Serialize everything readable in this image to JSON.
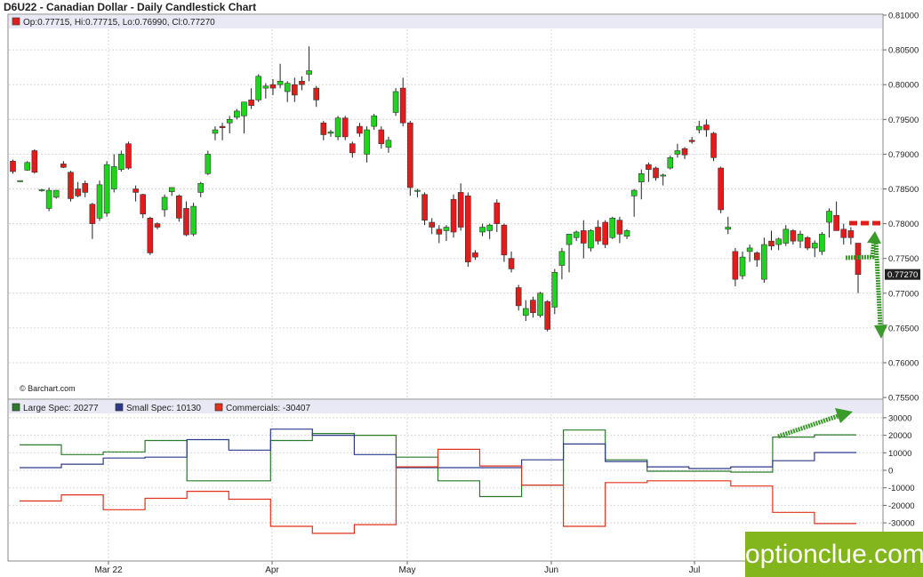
{
  "title": "D6U22 - Canadian Dollar - Daily Candlestick Chart",
  "ohlc_legend": "Op:0.77715, Hi:0.77715, Lo:0.76990, Cl:0.77270",
  "source": "© Barchart.com",
  "watermark": "optionclue.com",
  "colors": {
    "up": "#1fd41f",
    "down": "#e21b1b",
    "large_spec": "#2a7a2a",
    "small_spec": "#2b3b8a",
    "commercials": "#e0311a",
    "annotation": "#3a9a2a",
    "last_price_bg": "#222222"
  },
  "last_price_label": "0.77270",
  "chart_data": [
    {
      "type": "candlestick",
      "title": "D6U22 - Canadian Dollar - Daily Candlestick Chart",
      "ylim": [
        0.755,
        0.81
      ],
      "y_ticks": [
        "0.75500",
        "0.76000",
        "0.76500",
        "0.77000",
        "0.77500",
        "0.78000",
        "0.78500",
        "0.79000",
        "0.79500",
        "0.80000",
        "0.80500",
        "0.81000"
      ],
      "x_ticks": [
        "Mar 22",
        "Apr",
        "May",
        "Jun",
        "Jul"
      ],
      "last_close": 0.7727,
      "candles": [
        {
          "o": 0.789,
          "h": 0.7892,
          "l": 0.7872,
          "c": 0.7875
        },
        {
          "o": 0.7862,
          "h": 0.7862,
          "l": 0.786,
          "c": 0.7862
        },
        {
          "o": 0.7877,
          "h": 0.789,
          "l": 0.7876,
          "c": 0.7888
        },
        {
          "o": 0.7905,
          "h": 0.7907,
          "l": 0.7872,
          "c": 0.7874
        },
        {
          "o": 0.7848,
          "h": 0.785,
          "l": 0.7846,
          "c": 0.7849
        },
        {
          "o": 0.7822,
          "h": 0.7852,
          "l": 0.7818,
          "c": 0.7848
        },
        {
          "o": 0.7838,
          "h": 0.7848,
          "l": 0.7836,
          "c": 0.7848
        },
        {
          "o": 0.7886,
          "h": 0.789,
          "l": 0.788,
          "c": 0.7881
        },
        {
          "o": 0.7874,
          "h": 0.7876,
          "l": 0.7832,
          "c": 0.7836
        },
        {
          "o": 0.785,
          "h": 0.786,
          "l": 0.7838,
          "c": 0.784
        },
        {
          "o": 0.7858,
          "h": 0.7862,
          "l": 0.7838,
          "c": 0.7845
        },
        {
          "o": 0.7828,
          "h": 0.783,
          "l": 0.7778,
          "c": 0.78
        },
        {
          "o": 0.7808,
          "h": 0.7862,
          "l": 0.7804,
          "c": 0.7856
        },
        {
          "o": 0.7815,
          "h": 0.789,
          "l": 0.781,
          "c": 0.7885
        },
        {
          "o": 0.785,
          "h": 0.79,
          "l": 0.7845,
          "c": 0.7882
        },
        {
          "o": 0.7878,
          "h": 0.7905,
          "l": 0.7875,
          "c": 0.79
        },
        {
          "o": 0.7915,
          "h": 0.7918,
          "l": 0.7878,
          "c": 0.788
        },
        {
          "o": 0.785,
          "h": 0.7855,
          "l": 0.7832,
          "c": 0.7845
        },
        {
          "o": 0.7842,
          "h": 0.7843,
          "l": 0.7808,
          "c": 0.7814
        },
        {
          "o": 0.7808,
          "h": 0.781,
          "l": 0.7755,
          "c": 0.7758
        },
        {
          "o": 0.78,
          "h": 0.7802,
          "l": 0.7792,
          "c": 0.7795
        },
        {
          "o": 0.782,
          "h": 0.7842,
          "l": 0.781,
          "c": 0.7838
        },
        {
          "o": 0.7846,
          "h": 0.7852,
          "l": 0.784,
          "c": 0.7852
        },
        {
          "o": 0.784,
          "h": 0.7842,
          "l": 0.7803,
          "c": 0.7808
        },
        {
          "o": 0.7822,
          "h": 0.7832,
          "l": 0.7782,
          "c": 0.7784
        },
        {
          "o": 0.7785,
          "h": 0.783,
          "l": 0.7782,
          "c": 0.7825
        },
        {
          "o": 0.7845,
          "h": 0.786,
          "l": 0.7838,
          "c": 0.7858
        },
        {
          "o": 0.7872,
          "h": 0.7905,
          "l": 0.787,
          "c": 0.79
        },
        {
          "o": 0.793,
          "h": 0.794,
          "l": 0.792,
          "c": 0.7935
        },
        {
          "o": 0.794,
          "h": 0.7945,
          "l": 0.792,
          "c": 0.7938
        },
        {
          "o": 0.7945,
          "h": 0.7955,
          "l": 0.793,
          "c": 0.795
        },
        {
          "o": 0.7953,
          "h": 0.7965,
          "l": 0.795,
          "c": 0.7962
        },
        {
          "o": 0.7955,
          "h": 0.7975,
          "l": 0.793,
          "c": 0.7975
        },
        {
          "o": 0.7978,
          "h": 0.7995,
          "l": 0.7965,
          "c": 0.797
        },
        {
          "o": 0.7978,
          "h": 0.8015,
          "l": 0.7975,
          "c": 0.8012
        },
        {
          "o": 0.7995,
          "h": 0.8002,
          "l": 0.798,
          "c": 0.7998
        },
        {
          "o": 0.8,
          "h": 0.8008,
          "l": 0.7985,
          "c": 0.7995
        },
        {
          "o": 0.8,
          "h": 0.803,
          "l": 0.7995,
          "c": 0.8005
        },
        {
          "o": 0.799,
          "h": 0.8005,
          "l": 0.7975,
          "c": 0.8002
        },
        {
          "o": 0.8,
          "h": 0.801,
          "l": 0.7975,
          "c": 0.7985
        },
        {
          "o": 0.8005,
          "h": 0.8012,
          "l": 0.7992,
          "c": 0.8
        },
        {
          "o": 0.8015,
          "h": 0.8055,
          "l": 0.8005,
          "c": 0.802
        },
        {
          "o": 0.7995,
          "h": 0.7998,
          "l": 0.7968,
          "c": 0.7978
        },
        {
          "o": 0.7945,
          "h": 0.7948,
          "l": 0.792,
          "c": 0.7928
        },
        {
          "o": 0.793,
          "h": 0.7935,
          "l": 0.7925,
          "c": 0.7932
        },
        {
          "o": 0.7925,
          "h": 0.7955,
          "l": 0.792,
          "c": 0.7952
        },
        {
          "o": 0.7952,
          "h": 0.7955,
          "l": 0.792,
          "c": 0.7925
        },
        {
          "o": 0.7915,
          "h": 0.7918,
          "l": 0.7895,
          "c": 0.7902
        },
        {
          "o": 0.794,
          "h": 0.7945,
          "l": 0.7925,
          "c": 0.793
        },
        {
          "o": 0.79,
          "h": 0.794,
          "l": 0.7888,
          "c": 0.7935
        },
        {
          "o": 0.794,
          "h": 0.7958,
          "l": 0.7935,
          "c": 0.7955
        },
        {
          "o": 0.7935,
          "h": 0.794,
          "l": 0.7908,
          "c": 0.7915
        },
        {
          "o": 0.791,
          "h": 0.7925,
          "l": 0.7902,
          "c": 0.792
        },
        {
          "o": 0.796,
          "h": 0.7995,
          "l": 0.7955,
          "c": 0.799
        },
        {
          "o": 0.7995,
          "h": 0.801,
          "l": 0.794,
          "c": 0.7945
        },
        {
          "o": 0.7945,
          "h": 0.7948,
          "l": 0.784,
          "c": 0.7852
        },
        {
          "o": 0.7848,
          "h": 0.785,
          "l": 0.7838,
          "c": 0.7848
        },
        {
          "o": 0.7842,
          "h": 0.7845,
          "l": 0.7798,
          "c": 0.7805
        },
        {
          "o": 0.7802,
          "h": 0.7808,
          "l": 0.7785,
          "c": 0.7795
        },
        {
          "o": 0.7792,
          "h": 0.7798,
          "l": 0.7772,
          "c": 0.7785
        },
        {
          "o": 0.779,
          "h": 0.7798,
          "l": 0.7775,
          "c": 0.7795
        },
        {
          "o": 0.7835,
          "h": 0.7842,
          "l": 0.778,
          "c": 0.7788
        },
        {
          "o": 0.7845,
          "h": 0.7858,
          "l": 0.779,
          "c": 0.7795
        },
        {
          "o": 0.784,
          "h": 0.7845,
          "l": 0.7738,
          "c": 0.7745
        },
        {
          "o": 0.7758,
          "h": 0.7762,
          "l": 0.7748,
          "c": 0.7752
        },
        {
          "o": 0.7788,
          "h": 0.78,
          "l": 0.7782,
          "c": 0.7795
        },
        {
          "o": 0.779,
          "h": 0.78,
          "l": 0.7778,
          "c": 0.7798
        },
        {
          "o": 0.783,
          "h": 0.7835,
          "l": 0.7788,
          "c": 0.78
        },
        {
          "o": 0.7798,
          "h": 0.78,
          "l": 0.7745,
          "c": 0.7755
        },
        {
          "o": 0.775,
          "h": 0.776,
          "l": 0.773,
          "c": 0.7735
        },
        {
          "o": 0.7708,
          "h": 0.7712,
          "l": 0.7675,
          "c": 0.7682
        },
        {
          "o": 0.7668,
          "h": 0.769,
          "l": 0.766,
          "c": 0.7678
        },
        {
          "o": 0.769,
          "h": 0.7695,
          "l": 0.7665,
          "c": 0.7672
        },
        {
          "o": 0.7668,
          "h": 0.7702,
          "l": 0.7665,
          "c": 0.77
        },
        {
          "o": 0.7688,
          "h": 0.769,
          "l": 0.7645,
          "c": 0.7648
        },
        {
          "o": 0.768,
          "h": 0.7735,
          "l": 0.767,
          "c": 0.773
        },
        {
          "o": 0.774,
          "h": 0.7765,
          "l": 0.772,
          "c": 0.776
        },
        {
          "o": 0.777,
          "h": 0.7785,
          "l": 0.773,
          "c": 0.7785
        },
        {
          "o": 0.778,
          "h": 0.779,
          "l": 0.7775,
          "c": 0.7788
        },
        {
          "o": 0.779,
          "h": 0.7805,
          "l": 0.775,
          "c": 0.7772
        },
        {
          "o": 0.7765,
          "h": 0.7792,
          "l": 0.776,
          "c": 0.779
        },
        {
          "o": 0.7795,
          "h": 0.7805,
          "l": 0.777,
          "c": 0.7775
        },
        {
          "o": 0.7802,
          "h": 0.7805,
          "l": 0.7765,
          "c": 0.777
        },
        {
          "o": 0.778,
          "h": 0.781,
          "l": 0.7778,
          "c": 0.7808
        },
        {
          "o": 0.7805,
          "h": 0.781,
          "l": 0.7772,
          "c": 0.7785
        },
        {
          "o": 0.7782,
          "h": 0.7792,
          "l": 0.7778,
          "c": 0.779
        },
        {
          "o": 0.784,
          "h": 0.785,
          "l": 0.781,
          "c": 0.7848
        },
        {
          "o": 0.786,
          "h": 0.7878,
          "l": 0.7835,
          "c": 0.7872
        },
        {
          "o": 0.7885,
          "h": 0.7888,
          "l": 0.786,
          "c": 0.7878
        },
        {
          "o": 0.788,
          "h": 0.7882,
          "l": 0.7862,
          "c": 0.7866
        },
        {
          "o": 0.787,
          "h": 0.7872,
          "l": 0.7855,
          "c": 0.787
        },
        {
          "o": 0.788,
          "h": 0.7898,
          "l": 0.7878,
          "c": 0.7895
        },
        {
          "o": 0.79,
          "h": 0.7915,
          "l": 0.7895,
          "c": 0.7905
        },
        {
          "o": 0.7908,
          "h": 0.791,
          "l": 0.7893,
          "c": 0.7899
        },
        {
          "o": 0.792,
          "h": 0.7925,
          "l": 0.7915,
          "c": 0.7918
        },
        {
          "o": 0.7935,
          "h": 0.7948,
          "l": 0.793,
          "c": 0.794
        },
        {
          "o": 0.7942,
          "h": 0.795,
          "l": 0.7925,
          "c": 0.7935
        },
        {
          "o": 0.793,
          "h": 0.7932,
          "l": 0.789,
          "c": 0.7895
        },
        {
          "o": 0.788,
          "h": 0.7882,
          "l": 0.7815,
          "c": 0.782
        },
        {
          "o": 0.7792,
          "h": 0.781,
          "l": 0.7785,
          "c": 0.7795
        },
        {
          "o": 0.776,
          "h": 0.7765,
          "l": 0.771,
          "c": 0.772
        },
        {
          "o": 0.7725,
          "h": 0.776,
          "l": 0.772,
          "c": 0.7752
        },
        {
          "o": 0.776,
          "h": 0.777,
          "l": 0.7745,
          "c": 0.7765
        },
        {
          "o": 0.7758,
          "h": 0.776,
          "l": 0.7738,
          "c": 0.7748
        },
        {
          "o": 0.772,
          "h": 0.778,
          "l": 0.7715,
          "c": 0.777
        },
        {
          "o": 0.7775,
          "h": 0.779,
          "l": 0.7762,
          "c": 0.7768
        },
        {
          "o": 0.777,
          "h": 0.778,
          "l": 0.7762,
          "c": 0.7778
        },
        {
          "o": 0.7772,
          "h": 0.7798,
          "l": 0.7768,
          "c": 0.7792
        },
        {
          "o": 0.779,
          "h": 0.7792,
          "l": 0.777,
          "c": 0.7775
        },
        {
          "o": 0.7775,
          "h": 0.779,
          "l": 0.7765,
          "c": 0.7785
        },
        {
          "o": 0.778,
          "h": 0.7782,
          "l": 0.7762,
          "c": 0.7765
        },
        {
          "o": 0.7765,
          "h": 0.7776,
          "l": 0.7752,
          "c": 0.7772
        },
        {
          "o": 0.776,
          "h": 0.7788,
          "l": 0.7755,
          "c": 0.7785
        },
        {
          "o": 0.7802,
          "h": 0.7822,
          "l": 0.778,
          "c": 0.7818
        },
        {
          "o": 0.7812,
          "h": 0.7832,
          "l": 0.7792,
          "c": 0.779
        },
        {
          "o": 0.7792,
          "h": 0.78,
          "l": 0.777,
          "c": 0.778
        },
        {
          "o": 0.779,
          "h": 0.7795,
          "l": 0.777,
          "c": 0.778
        },
        {
          "o": 0.7772,
          "h": 0.7772,
          "l": 0.77,
          "c": 0.7727
        }
      ]
    },
    {
      "type": "line",
      "step": true,
      "ylim": [
        -36000,
        34000
      ],
      "y_ticks": [
        "30000",
        "20000",
        "10000",
        "0",
        "-10000",
        "-20000",
        "-30000"
      ],
      "series": [
        {
          "name": "Large Spec: 20277",
          "color": "#2a7a2a",
          "values": [
            14500,
            9000,
            10500,
            17000,
            -6000,
            -6000,
            17000,
            21000,
            20000,
            7500,
            -6000,
            -15000,
            -8500,
            23000,
            6000,
            -500,
            -500,
            -1000,
            19000,
            20277
          ]
        },
        {
          "name": "Small Spec: 10130",
          "color": "#2b3b8a",
          "values": [
            1500,
            3500,
            7000,
            7500,
            17500,
            11500,
            23500,
            20000,
            9000,
            1500,
            1500,
            1500,
            6000,
            15000,
            5000,
            2000,
            1000,
            2000,
            5500,
            10130
          ]
        },
        {
          "name": "Commercials: -30407",
          "color": "#e0311a",
          "values": [
            -17500,
            -14000,
            -22500,
            -16000,
            -12000,
            -16500,
            -32000,
            -36000,
            -31000,
            2000,
            12000,
            2500,
            -8500,
            -32000,
            -7000,
            -6000,
            -6000,
            -9000,
            -24000,
            -30407
          ]
        }
      ]
    }
  ]
}
